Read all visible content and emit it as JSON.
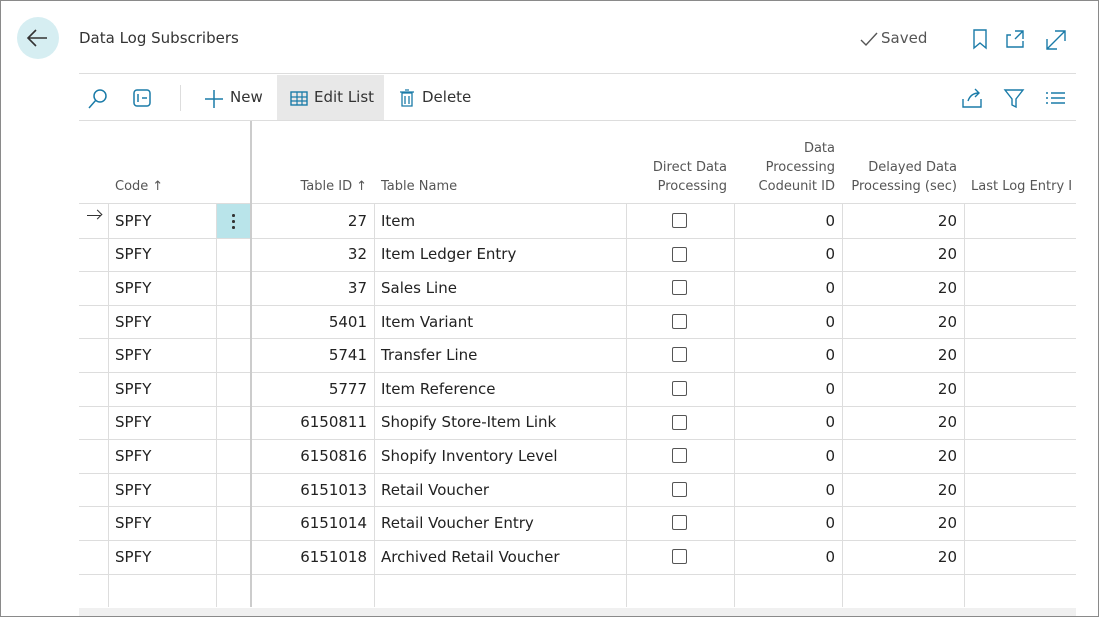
{
  "header": {
    "title": "Data Log Subscribers",
    "status": "Saved"
  },
  "toolbar": {
    "new": "New",
    "edit_list": "Edit List",
    "delete": "Delete"
  },
  "table": {
    "columns": [
      "Code",
      "Table ID",
      "Table Name",
      "Direct Data Processing",
      "Data Processing Codeunit ID",
      "Delayed Data Processing (sec)",
      "Last Log Entry I"
    ],
    "rows": [
      [
        "SPFY",
        27,
        "Item",
        false,
        0,
        20
      ],
      [
        "SPFY",
        32,
        "Item Ledger Entry",
        false,
        0,
        20
      ],
      [
        "SPFY",
        37,
        "Sales Line",
        false,
        0,
        20
      ],
      [
        "SPFY",
        5401,
        "Item Variant",
        false,
        0,
        20
      ],
      [
        "SPFY",
        5741,
        "Transfer Line",
        false,
        0,
        20
      ],
      [
        "SPFY",
        5777,
        "Item Reference",
        false,
        0,
        20
      ],
      [
        "SPFY",
        6150811,
        "Shopify Store-Item Link",
        false,
        0,
        20
      ],
      [
        "SPFY",
        6150816,
        "Shopify Inventory Level",
        false,
        0,
        20
      ],
      [
        "SPFY",
        6151013,
        "Retail Voucher",
        false,
        0,
        20
      ],
      [
        "SPFY",
        6151014,
        "Retail Voucher Entry",
        false,
        0,
        20
      ],
      [
        "SPFY",
        6151018,
        "Archived Retail Voucher",
        false,
        0,
        20
      ]
    ]
  }
}
